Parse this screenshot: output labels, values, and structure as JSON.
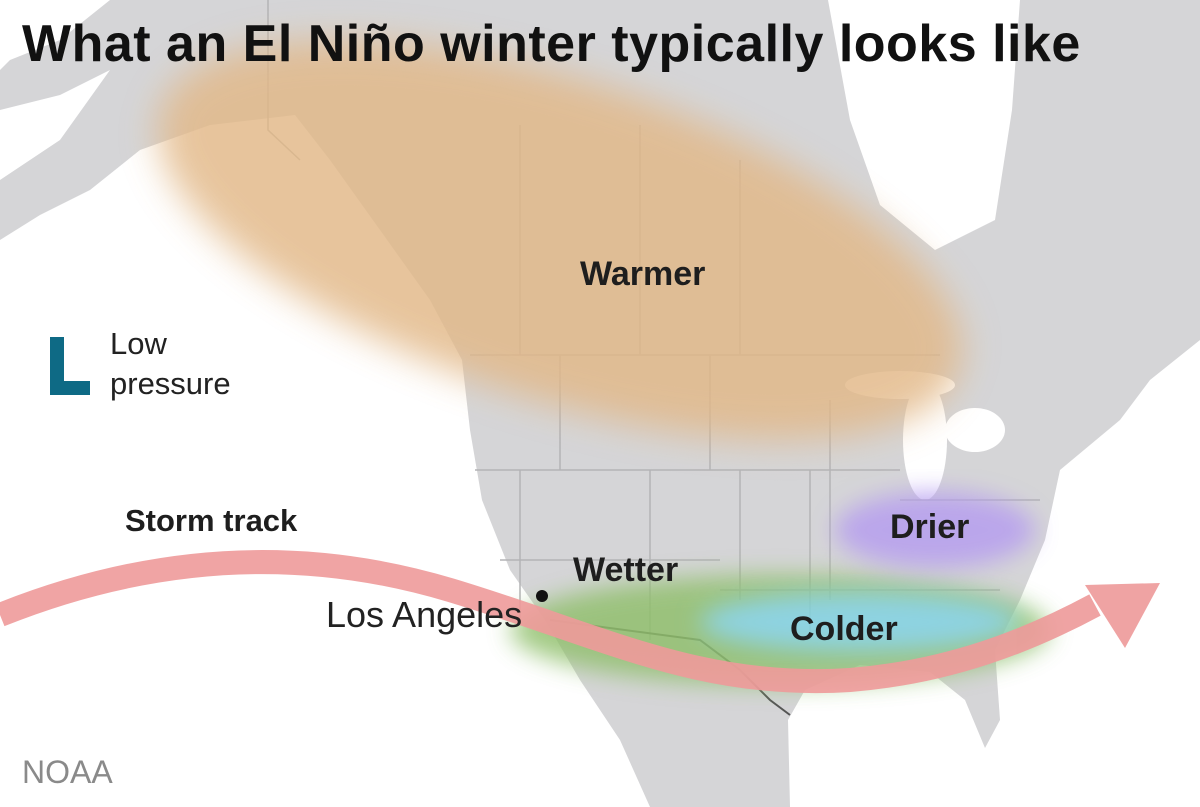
{
  "title": "What an El Niño winter typically looks like",
  "legend": {
    "symbol": "L",
    "label_line1": "Low",
    "label_line2": "pressure",
    "color": "#0e6a85"
  },
  "regions": {
    "warmer": {
      "label": "Warmer",
      "color": "#e2b887"
    },
    "wetter": {
      "label": "Wetter",
      "color": "#8fbf6a"
    },
    "colder": {
      "label": "Colder",
      "color": "#7fd3e3"
    },
    "drier": {
      "label": "Drier",
      "color": "#b59cf0"
    }
  },
  "storm_track": {
    "label": "Storm track",
    "color": "#ee9a9a"
  },
  "city": {
    "label": "Los Angeles"
  },
  "source": "NOAA",
  "colors": {
    "land": "#d5d5d7",
    "water": "#ffffff",
    "borders": "#b3b3b6"
  }
}
